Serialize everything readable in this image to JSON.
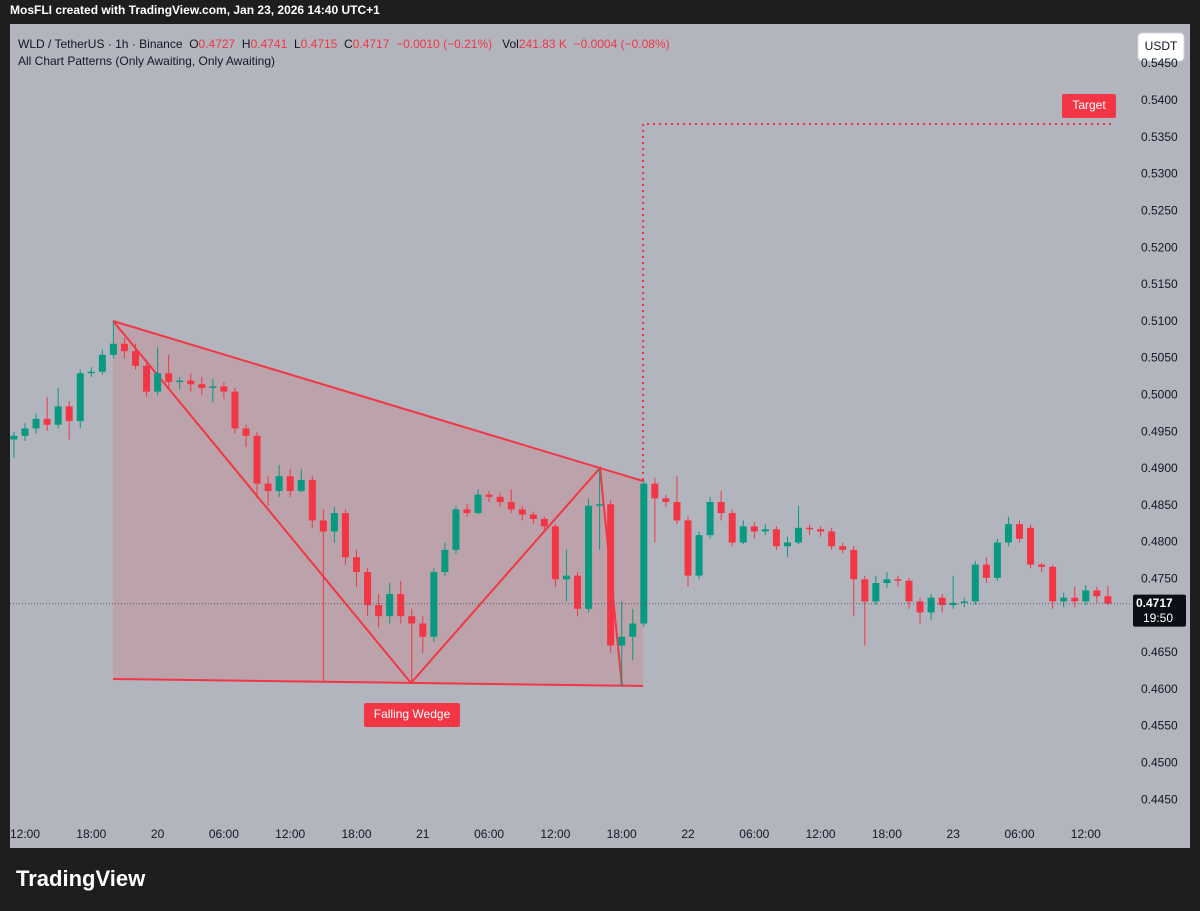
{
  "top_bar": "MosFLI created with TradingView.com, Jan 23, 2026 14:40 UTC+1",
  "legend": {
    "symbol": "WLD / TetherUS · 1h · Binance",
    "ohlc_labels": [
      "O",
      "H",
      "L",
      "C"
    ],
    "change": "−0.0010 (−0.21%)",
    "volume_label": "Vol",
    "volume": "241.83 K",
    "volume_change": "−0.0004 (−0.08%)",
    "indicator": "All Chart Patterns (Only Awaiting, Only Awaiting)"
  },
  "currency": "USDT",
  "countdown": "19:50",
  "pattern_labels": {
    "pattern": "Falling Wedge",
    "target": "Target"
  },
  "brand": "TradingView",
  "chart_data": {
    "type": "candlestick",
    "up_color": "#089981",
    "down_color": "#f23645",
    "grid": false,
    "categories": [
      null,
      "12:00",
      null,
      null,
      null,
      null,
      null,
      "18:00",
      null,
      null,
      null,
      null,
      null,
      "20",
      null,
      null,
      null,
      null,
      null,
      "06:00",
      null,
      null,
      null,
      null,
      null,
      "12:00",
      null,
      null,
      null,
      null,
      null,
      "18:00",
      null,
      null,
      null,
      null,
      null,
      "21",
      null,
      null,
      null,
      null,
      null,
      "06:00",
      null,
      null,
      null,
      null,
      null,
      "12:00",
      null,
      null,
      null,
      null,
      null,
      "18:00",
      null,
      null,
      null,
      null,
      null,
      "22",
      null,
      null,
      null,
      null,
      null,
      "06:00",
      null,
      null,
      null,
      null,
      null,
      "12:00",
      null,
      null,
      null,
      null,
      null,
      "18:00",
      null,
      null,
      null,
      null,
      null,
      "23",
      null,
      null,
      null,
      null,
      null,
      "06:00",
      null,
      null,
      null,
      null,
      null,
      "12:00",
      null,
      null
    ],
    "open": [
      0.494,
      0.4945,
      0.4955,
      0.4968,
      0.496,
      0.4985,
      0.4965,
      0.503,
      0.5032,
      0.5055,
      0.507,
      0.506,
      0.504,
      0.5005,
      0.503,
      0.5018,
      0.502,
      0.5015,
      0.501,
      0.5012,
      0.5005,
      0.4955,
      0.4945,
      0.488,
      0.487,
      0.489,
      0.487,
      0.4885,
      0.483,
      0.4815,
      0.484,
      0.478,
      0.476,
      0.4715,
      0.47,
      0.473,
      0.47,
      0.469,
      0.4672,
      0.476,
      0.479,
      0.4845,
      0.484,
      0.4865,
      0.4862,
      0.4855,
      0.4845,
      0.4838,
      0.4832,
      0.4822,
      0.475,
      0.4755,
      0.471,
      0.485,
      0.4852,
      0.466,
      0.4672,
      0.469,
      0.488,
      0.486,
      0.4855,
      0.483,
      0.4755,
      0.481,
      0.4855,
      0.484,
      0.48,
      0.4822,
      0.4815,
      0.4818,
      0.4795,
      0.48,
      0.482,
      0.4818,
      0.4815,
      0.4795,
      0.479,
      0.475,
      0.472,
      0.4745,
      0.475,
      0.4748,
      0.472,
      0.4705,
      0.4725,
      0.4715,
      0.4718,
      0.472,
      0.477,
      0.4752,
      0.48,
      0.4825,
      0.482,
      0.477,
      0.4767,
      0.472,
      0.4725,
      0.472,
      0.4735,
      0.4727
    ],
    "high": [
      0.495,
      0.4962,
      0.4975,
      0.4998,
      0.501,
      0.4992,
      0.5035,
      0.5038,
      0.5062,
      0.51,
      0.5078,
      0.507,
      0.5048,
      0.5065,
      0.5055,
      0.5025,
      0.503,
      0.5025,
      0.5022,
      0.5018,
      0.501,
      0.496,
      0.495,
      0.489,
      0.4905,
      0.49,
      0.49,
      0.489,
      0.4845,
      0.4848,
      0.4845,
      0.479,
      0.4765,
      0.473,
      0.4745,
      0.4748,
      0.471,
      0.47,
      0.4765,
      0.48,
      0.485,
      0.4852,
      0.4872,
      0.487,
      0.4868,
      0.4872,
      0.485,
      0.4842,
      0.4835,
      0.4825,
      0.479,
      0.476,
      0.486,
      0.49,
      0.4858,
      0.472,
      0.471,
      0.4885,
      0.4888,
      0.4865,
      0.489,
      0.4835,
      0.4815,
      0.4862,
      0.487,
      0.4845,
      0.483,
      0.4828,
      0.4825,
      0.4822,
      0.4808,
      0.485,
      0.4825,
      0.4822,
      0.482,
      0.48,
      0.4795,
      0.4755,
      0.4755,
      0.476,
      0.4755,
      0.4752,
      0.4725,
      0.473,
      0.473,
      0.4755,
      0.4725,
      0.4775,
      0.478,
      0.4805,
      0.4835,
      0.483,
      0.4825,
      0.4772,
      0.477,
      0.4732,
      0.474,
      0.4742,
      0.474,
      0.4741
    ],
    "low": [
      0.4915,
      0.4938,
      0.4948,
      0.4952,
      0.4955,
      0.494,
      0.4955,
      0.5025,
      0.5028,
      0.505,
      0.505,
      0.5035,
      0.4998,
      0.5,
      0.501,
      0.5008,
      0.5005,
      0.5,
      0.499,
      0.4995,
      0.4948,
      0.493,
      0.486,
      0.485,
      0.4862,
      0.4862,
      0.4868,
      0.482,
      0.461,
      0.48,
      0.477,
      0.474,
      0.47,
      0.4685,
      0.469,
      0.469,
      0.461,
      0.465,
      0.4665,
      0.4755,
      0.4785,
      0.4835,
      0.4838,
      0.4855,
      0.4848,
      0.484,
      0.483,
      0.4825,
      0.4815,
      0.474,
      0.472,
      0.47,
      0.4705,
      0.479,
      0.465,
      0.4605,
      0.464,
      0.4685,
      0.48,
      0.4848,
      0.4825,
      0.474,
      0.475,
      0.4805,
      0.483,
      0.4795,
      0.4798,
      0.4805,
      0.481,
      0.479,
      0.478,
      0.4798,
      0.481,
      0.4808,
      0.479,
      0.4785,
      0.47,
      0.466,
      0.4715,
      0.4738,
      0.474,
      0.471,
      0.469,
      0.4695,
      0.4705,
      0.471,
      0.4712,
      0.4715,
      0.4745,
      0.4748,
      0.4795,
      0.48,
      0.4765,
      0.476,
      0.471,
      0.4712,
      0.4712,
      0.4715,
      0.4718,
      0.4715
    ],
    "close": [
      0.4945,
      0.4955,
      0.4968,
      0.496,
      0.4985,
      0.4965,
      0.503,
      0.5032,
      0.5055,
      0.507,
      0.506,
      0.504,
      0.5005,
      0.503,
      0.5018,
      0.502,
      0.5015,
      0.501,
      0.5012,
      0.5005,
      0.4955,
      0.4945,
      0.488,
      0.487,
      0.489,
      0.487,
      0.4885,
      0.483,
      0.4815,
      0.484,
      0.478,
      0.476,
      0.4715,
      0.47,
      0.473,
      0.47,
      0.469,
      0.4672,
      0.476,
      0.479,
      0.4845,
      0.484,
      0.4865,
      0.4862,
      0.4855,
      0.4845,
      0.4838,
      0.4832,
      0.4822,
      0.475,
      0.4755,
      0.471,
      0.485,
      0.4852,
      0.466,
      0.4672,
      0.469,
      0.488,
      0.486,
      0.4855,
      0.483,
      0.4755,
      0.481,
      0.4855,
      0.484,
      0.48,
      0.4822,
      0.4815,
      0.4818,
      0.4795,
      0.48,
      0.482,
      0.4818,
      0.4815,
      0.4795,
      0.479,
      0.475,
      0.472,
      0.4745,
      0.475,
      0.4748,
      0.472,
      0.4705,
      0.4725,
      0.4715,
      0.4718,
      0.472,
      0.477,
      0.4752,
      0.48,
      0.4825,
      0.4805,
      0.477,
      0.4767,
      0.472,
      0.4725,
      0.472,
      0.4735,
      0.4727,
      0.4717
    ],
    "ylim": [
      0.4385,
      0.5499
    ],
    "yticks": [
      {
        "value": 0.445,
        "label": "0.4450"
      },
      {
        "value": 0.45,
        "label": "0.4500"
      },
      {
        "value": 0.455,
        "label": "0.4550"
      },
      {
        "value": 0.46,
        "label": "0.4600"
      },
      {
        "value": 0.465,
        "label": "0.4650"
      },
      {
        "value": 0.47,
        "label": "0.4700"
      },
      {
        "value": 0.475,
        "label": "0.4750"
      },
      {
        "value": 0.48,
        "label": "0.4800"
      },
      {
        "value": 0.485,
        "label": "0.4850"
      },
      {
        "value": 0.49,
        "label": "0.4900"
      },
      {
        "value": 0.495,
        "label": "0.4950"
      },
      {
        "value": 0.5,
        "label": "0.5000"
      },
      {
        "value": 0.505,
        "label": "0.5050"
      },
      {
        "value": 0.51,
        "label": "0.5100"
      },
      {
        "value": 0.515,
        "label": "0.5150"
      },
      {
        "value": 0.52,
        "label": "0.5200"
      },
      {
        "value": 0.525,
        "label": "0.5250"
      },
      {
        "value": 0.53,
        "label": "0.5300"
      },
      {
        "value": 0.535,
        "label": "0.5350"
      },
      {
        "value": 0.54,
        "label": "0.5400"
      },
      {
        "value": 0.545,
        "label": "0.5450"
      }
    ]
  }
}
